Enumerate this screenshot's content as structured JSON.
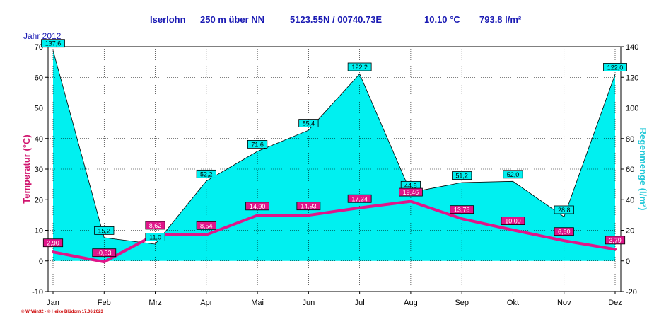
{
  "header": {
    "station": "Iserlohn",
    "altitude": "250 m über NN",
    "coords": "5123.55N / 00740.73E",
    "avg_temp": "10.10 °C",
    "rain_total": "793.8 l/m²",
    "year_label": "Jahr 2012"
  },
  "footer": {
    "software": "© WrWin32",
    "author": "© Heiko Blüdorn  17.06.2023"
  },
  "colors": {
    "rain_fill": "#00f0f0",
    "temp_line": "#e0158a",
    "axis_left_label": "#d0146e",
    "axis_right_label": "#22c8d8",
    "title_text": "#1a1ab3"
  },
  "chart_data": {
    "type": "line",
    "categories": [
      "Jan",
      "Feb",
      "Mrz",
      "Apr",
      "Mai",
      "Jun",
      "Jul",
      "Aug",
      "Sep",
      "Okt",
      "Nov",
      "Dez"
    ],
    "series": [
      {
        "name": "Temperatur",
        "axis": "left",
        "values": [
          2.9,
          -0.33,
          8.62,
          8.54,
          14.9,
          14.93,
          17.34,
          19.46,
          13.78,
          10.09,
          6.6,
          3.79
        ],
        "labels": [
          "2,90",
          "-0,33",
          "8,62",
          "8,54",
          "14,90",
          "14,93",
          "17,34",
          "19,46",
          "13,78",
          "10,09",
          "6,60",
          "3,79"
        ]
      },
      {
        "name": "Regenmenge",
        "axis": "right",
        "values": [
          137.6,
          15.2,
          11.0,
          52.2,
          71.6,
          85.4,
          122.2,
          44.8,
          51.2,
          52.0,
          28.8,
          122.0
        ],
        "labels": [
          "137,6",
          "15,2",
          "11,0",
          "52,2",
          "71,6",
          "85,4",
          "122,2",
          "44,8",
          "51,2",
          "52,0",
          "28,8",
          "122,0"
        ]
      }
    ],
    "ylabel": "Temperatur  (°C)",
    "ylabel_right": "Regenmenge  (l/m²)",
    "ylim": [
      -10,
      70
    ],
    "ylim_right": [
      -20,
      140
    ],
    "yticks": [
      -10,
      0,
      10,
      20,
      30,
      40,
      50,
      60,
      70
    ],
    "yticks_right": [
      -20,
      0,
      20,
      40,
      60,
      80,
      100,
      120,
      140
    ],
    "grid": true
  }
}
